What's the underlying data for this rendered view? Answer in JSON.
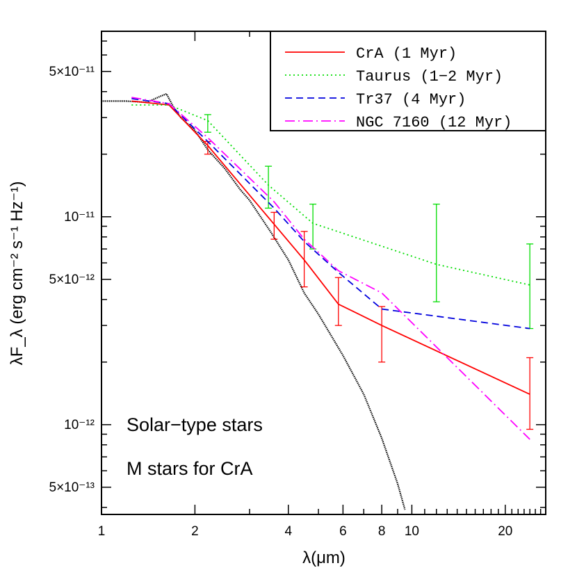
{
  "chart_data": {
    "type": "line",
    "xscale": "log",
    "yscale": "log",
    "xlim": [
      1,
      27
    ],
    "ylim": [
      3.7e-13,
      7.8e-11
    ],
    "xlabel": "λ(μm)",
    "ylabel": "λF_λ (erg cm⁻² s⁻¹ Hz⁻¹)",
    "x_tick_labels": [
      {
        "value": 1,
        "label": "1"
      },
      {
        "value": 2,
        "label": "2"
      },
      {
        "value": 4,
        "label": "4"
      },
      {
        "value": 6,
        "label": "6"
      },
      {
        "value": 8,
        "label": "8"
      },
      {
        "value": 10,
        "label": "10"
      },
      {
        "value": 20,
        "label": "20"
      }
    ],
    "y_tick_labels": [
      {
        "value": 5e-11,
        "label": "5×10⁻¹¹"
      },
      {
        "value": 1e-11,
        "label": "10⁻¹¹"
      },
      {
        "value": 5e-12,
        "label": "5×10⁻¹²"
      },
      {
        "value": 1e-12,
        "label": "10⁻¹²"
      },
      {
        "value": 5e-13,
        "label": "5×10⁻¹³"
      }
    ],
    "legend_position": "top-right",
    "annotations": [
      "Solar−type stars",
      "M stars for CrA"
    ],
    "photosphere": {
      "color": "#000000",
      "x": [
        1.0,
        1.2,
        1.4,
        1.55,
        1.62,
        1.7,
        1.8,
        2.0,
        2.2,
        2.5,
        2.8,
        3.0,
        3.5,
        4.0,
        4.5,
        5.0,
        6.0,
        7.0,
        8.0,
        9.0,
        9.5
      ],
      "y": [
        3.6e-11,
        3.6e-11,
        3.55e-11,
        3.8e-11,
        3.9e-11,
        3.4e-11,
        3e-11,
        2.6e-11,
        2.1e-11,
        1.7e-11,
        1.35e-11,
        1.2e-11,
        8.5e-12,
        6.2e-12,
        4.3e-12,
        3.4e-12,
        2.15e-12,
        1.4e-12,
        8.6e-13,
        5.2e-13,
        3.9e-13
      ]
    },
    "series": [
      {
        "name": "CrA (1 Myr)",
        "color": "#ff0000",
        "dash": "solid",
        "x": [
          1.25,
          1.65,
          2.2,
          3.6,
          4.5,
          5.8,
          8.0,
          24.0
        ],
        "y": [
          3.6e-11,
          3.45e-11,
          2.2e-11,
          9.2e-12,
          6.2e-12,
          3.8e-12,
          3e-12,
          1.4e-12
        ],
        "err_x": [
          2.2,
          3.6,
          4.5,
          5.8,
          8.0,
          24.0
        ],
        "err_lo": [
          2e-11,
          7.8e-12,
          4.6e-12,
          3e-12,
          2e-12,
          9.5e-13
        ],
        "err_hi": [
          2.3e-11,
          1.05e-11,
          8.5e-12,
          5.1e-12,
          3.7e-12,
          2.1e-12
        ]
      },
      {
        "name": "Taurus (1−2 Myr)",
        "color": "#00dd00",
        "dash": "dotted",
        "x": [
          1.25,
          1.65,
          2.2,
          3.45,
          4.8,
          12.0,
          24.0
        ],
        "y": [
          3.45e-11,
          3.45e-11,
          2.9e-11,
          1.42e-11,
          9.3e-12,
          5.9e-12,
          4.7e-12
        ],
        "err_x": [
          2.2,
          3.45,
          4.8,
          12.0,
          24.0
        ],
        "err_lo": [
          2.55e-11,
          1.1e-11,
          7e-12,
          3.9e-12,
          2.9e-12
        ],
        "err_hi": [
          3.1e-11,
          1.75e-11,
          1.15e-11,
          1.15e-11,
          7.4e-12
        ]
      },
      {
        "name": "Tr37 (4 Myr)",
        "color": "#0000dd",
        "dash": "dashed",
        "x": [
          1.25,
          1.65,
          2.2,
          3.6,
          4.5,
          5.8,
          8.0,
          24.0
        ],
        "y": [
          3.7e-11,
          3.5e-11,
          2.3e-11,
          1.1e-11,
          7.6e-12,
          5.4e-12,
          3.6e-12,
          2.9e-12
        ]
      },
      {
        "name": "NGC 7160 (12 Myr)",
        "color": "#ff00ff",
        "dash": "dashdot",
        "x": [
          1.25,
          1.65,
          2.2,
          3.6,
          4.5,
          5.8,
          8.0,
          24.0
        ],
        "y": [
          3.75e-11,
          3.5e-11,
          2.4e-11,
          1.18e-11,
          7.8e-12,
          5.5e-12,
          4.3e-12,
          8.5e-13
        ]
      }
    ]
  }
}
